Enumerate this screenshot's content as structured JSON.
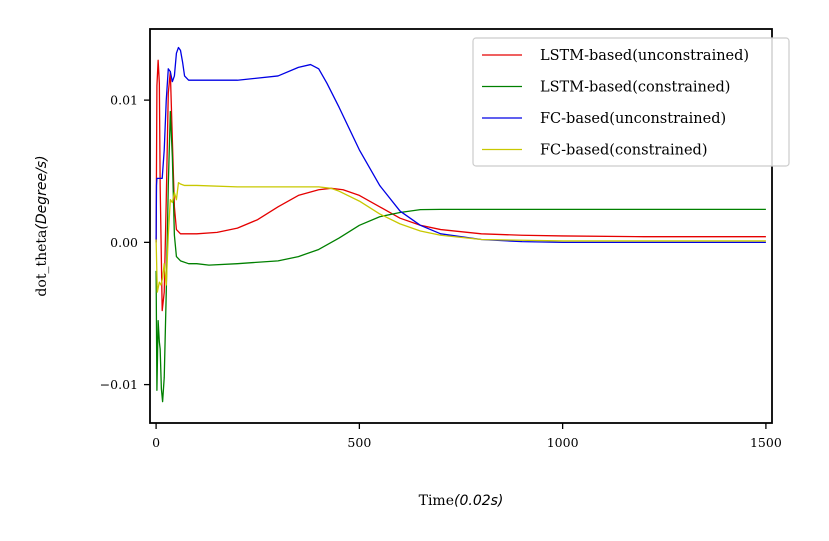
{
  "chart_data": {
    "type": "line",
    "title": "",
    "xlabel_prefix": "Time",
    "xlabel_unit": "(0.02s)",
    "ylabel_prefix": "dot_theta",
    "ylabel_unit": "(Degree/s)",
    "xlim": [
      -15,
      1515
    ],
    "ylim": [
      -0.0127,
      0.015
    ],
    "x_ticks": [
      0,
      500,
      1000,
      1500
    ],
    "x_tick_labels": [
      "0",
      "500",
      "1000",
      "1500"
    ],
    "y_ticks": [
      -0.01,
      0.0,
      0.01
    ],
    "y_tick_labels": [
      "−0.01",
      "0.00",
      "0.01"
    ],
    "grid": false,
    "legend_position": "top-right",
    "series": [
      {
        "name": "LSTM-based(unconstrained)",
        "color": "#e50000",
        "x": [
          0,
          2,
          5,
          8,
          10,
          15,
          20,
          25,
          30,
          35,
          40,
          45,
          50,
          60,
          80,
          100,
          150,
          200,
          250,
          300,
          350,
          400,
          430,
          460,
          500,
          550,
          600,
          650,
          700,
          800,
          900,
          1000,
          1200,
          1500
        ],
        "y": [
          0.0,
          0.011,
          0.0128,
          0.0112,
          0.004,
          -0.0048,
          -0.0035,
          0.003,
          0.0105,
          0.012,
          0.0072,
          0.0025,
          0.0009,
          0.0006,
          0.0006,
          0.0006,
          0.0007,
          0.001,
          0.0016,
          0.0025,
          0.0033,
          0.0037,
          0.0038,
          0.0037,
          0.0033,
          0.0025,
          0.0017,
          0.0012,
          0.0009,
          0.0006,
          0.0005,
          0.00045,
          0.0004,
          0.0004
        ]
      },
      {
        "name": "LSTM-based(constrained)",
        "color": "#008000",
        "x": [
          0,
          2,
          5,
          8,
          10,
          13,
          16,
          20,
          25,
          30,
          35,
          40,
          45,
          50,
          60,
          80,
          100,
          130,
          200,
          300,
          350,
          400,
          450,
          500,
          550,
          600,
          650,
          700,
          800,
          1000,
          1200,
          1500
        ],
        "y": [
          -0.002,
          -0.0104,
          -0.0055,
          -0.007,
          -0.0075,
          -0.0103,
          -0.0112,
          -0.0095,
          -0.0035,
          0.004,
          0.0092,
          0.006,
          0.0005,
          -0.001,
          -0.0013,
          -0.0015,
          -0.0015,
          -0.0016,
          -0.0015,
          -0.0013,
          -0.001,
          -0.0005,
          0.0003,
          0.0012,
          0.0018,
          0.0021,
          0.0023,
          0.00232,
          0.00232,
          0.00232,
          0.00232,
          0.00232
        ]
      },
      {
        "name": "FC-based(unconstrained)",
        "color": "#0000e5",
        "x": [
          0,
          1,
          2,
          5,
          10,
          15,
          20,
          25,
          30,
          35,
          40,
          45,
          50,
          55,
          60,
          65,
          70,
          80,
          90,
          100,
          200,
          300,
          350,
          380,
          400,
          420,
          450,
          500,
          550,
          600,
          650,
          700,
          800,
          900,
          1000,
          1200,
          1500
        ],
        "y": [
          0.0,
          0.004,
          0.0045,
          0.0045,
          0.0045,
          0.0045,
          0.0065,
          0.01,
          0.0122,
          0.012,
          0.0113,
          0.0117,
          0.0133,
          0.0137,
          0.0135,
          0.0127,
          0.0117,
          0.0114,
          0.0114,
          0.0114,
          0.0114,
          0.0117,
          0.0123,
          0.0125,
          0.0122,
          0.0112,
          0.0095,
          0.0065,
          0.004,
          0.0022,
          0.0012,
          0.0006,
          0.0002,
          5e-05,
          0.0,
          0.0,
          0.0
        ]
      },
      {
        "name": "FC-based(constrained)",
        "color": "#c8c800",
        "x": [
          0,
          3,
          8,
          12,
          16,
          20,
          25,
          30,
          35,
          40,
          45,
          50,
          55,
          60,
          70,
          80,
          100,
          200,
          300,
          350,
          400,
          430,
          450,
          500,
          550,
          600,
          650,
          700,
          800,
          1000,
          1200,
          1500
        ],
        "y": [
          0.0002,
          -0.0035,
          -0.0028,
          -0.003,
          -0.0025,
          -0.0015,
          -0.003,
          0.0005,
          0.003,
          0.0028,
          0.0035,
          0.003,
          0.0042,
          0.0041,
          0.004,
          0.004,
          0.004,
          0.0039,
          0.0039,
          0.0039,
          0.0039,
          0.0038,
          0.0036,
          0.0029,
          0.002,
          0.0013,
          0.0008,
          0.0005,
          0.0002,
          0.0001,
          0.0001,
          0.0001
        ]
      }
    ]
  }
}
